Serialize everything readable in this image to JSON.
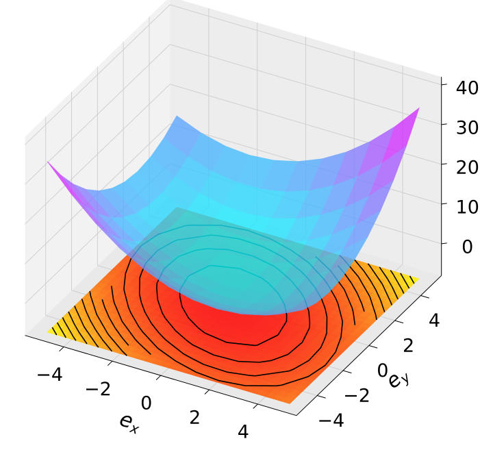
{
  "chart_data": {
    "type": "surface",
    "x": [
      -5,
      -4,
      -3,
      -2,
      -1,
      0,
      1,
      2,
      3,
      4,
      5
    ],
    "y": [
      -5,
      -4,
      -3,
      -2,
      -1,
      0,
      1,
      2,
      3,
      4,
      5
    ],
    "z": [
      [
        35,
        28.5,
        23,
        18.5,
        15,
        12.5,
        11,
        10.5,
        11,
        12.5,
        15
      ],
      [
        28.5,
        22.4,
        17.3,
        13.2,
        10.1,
        8,
        6.9,
        6.8,
        7.7,
        9.6,
        12.5
      ],
      [
        23,
        17.3,
        12.6,
        8.9,
        6.2,
        4.5,
        3.8,
        4.1,
        5.4,
        7.7,
        11
      ],
      [
        18.5,
        13.2,
        8.9,
        5.6,
        3.3,
        2,
        1.7,
        2.4,
        4.1,
        6.8,
        10.5
      ],
      [
        15,
        10.1,
        6.2,
        3.3,
        1.4,
        0.5,
        0.6,
        1.7,
        3.8,
        6.9,
        11
      ],
      [
        12.5,
        8,
        4.5,
        2,
        0.5,
        0,
        0.5,
        2,
        4.5,
        8,
        12.5
      ],
      [
        11,
        6.9,
        3.8,
        1.7,
        0.6,
        0.5,
        1.4,
        3.3,
        6.2,
        10.1,
        15
      ],
      [
        10.5,
        6.8,
        4.1,
        2.4,
        1.7,
        2,
        3.3,
        5.6,
        8.9,
        13.2,
        18.5
      ],
      [
        11,
        7.7,
        5.4,
        4.1,
        3.8,
        4.5,
        6.2,
        8.9,
        12.6,
        17.3,
        23
      ],
      [
        12.5,
        9.6,
        7.7,
        6.8,
        6.9,
        8,
        10.1,
        13.2,
        17.3,
        22.4,
        28.5
      ],
      [
        15,
        12.5,
        11,
        10.5,
        11,
        12.5,
        15,
        18.5,
        23,
        28.5,
        35
      ]
    ],
    "xlim": [
      -5.6,
      5.6
    ],
    "ylim": [
      -5.6,
      5.6
    ],
    "zlim": [
      -8,
      42
    ],
    "xticks": [
      {
        "value": -4,
        "label": "−4"
      },
      {
        "value": -2,
        "label": "−2"
      },
      0,
      2,
      4
    ],
    "yticks": [
      {
        "value": -4,
        "label": "−4"
      },
      {
        "value": -2,
        "label": "−2"
      },
      0,
      2,
      4
    ],
    "zticks": [
      0,
      10,
      20,
      30,
      40
    ],
    "xlabel": [
      "e",
      "x"
    ],
    "ylabel": [
      "e",
      "y"
    ],
    "surface_cmap": "cool",
    "surface_alpha": 0.78,
    "contour_cmap": "autumn",
    "contour_levels": [
      2.5,
      5,
      7.5,
      10,
      12.5,
      15,
      17.5,
      20,
      22.5,
      25,
      27.5,
      30,
      32.5
    ],
    "contour_color": "#000000",
    "grid": true
  }
}
